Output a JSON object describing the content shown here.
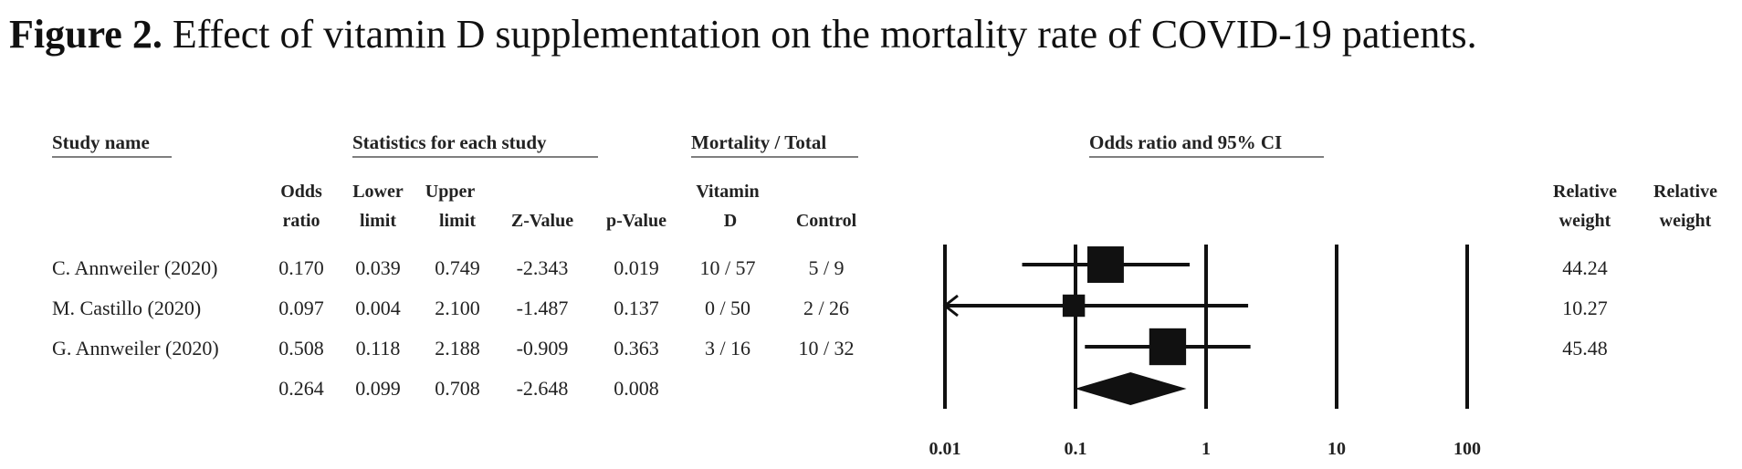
{
  "caption": {
    "label": "Figure 2.",
    "text": " Effect of vitamin D supplementation on the mortality rate of COVID-19 patients."
  },
  "table": {
    "group_headers": {
      "study": "Study name",
      "stats": "Statistics for each study",
      "mortality": "Mortality / Total",
      "plot": "Odds ratio and 95% CI"
    },
    "columns": {
      "odds_ratio": [
        "Odds",
        "ratio"
      ],
      "lower": [
        "Lower",
        "limit"
      ],
      "upper": [
        "Upper",
        "limit"
      ],
      "z": "Z-Value",
      "p": "p-Value",
      "vitd": [
        "Vitamin",
        "D"
      ],
      "control": "Control",
      "weight1": [
        "Relative",
        "weight"
      ],
      "weight2": [
        "Relative",
        "weight"
      ]
    },
    "rows": [
      {
        "study": "C. Annweiler (2020)",
        "or": "0.170",
        "lower": "0.039",
        "upper": "0.749",
        "z": "-2.343",
        "p": "0.019",
        "vitd": "10 / 57",
        "control": "5 / 9",
        "weight": "44.24"
      },
      {
        "study": "M. Castillo (2020)",
        "or": "0.097",
        "lower": "0.004",
        "upper": "2.100",
        "z": "-1.487",
        "p": "0.137",
        "vitd": "0 / 50",
        "control": "2 / 26",
        "weight": "10.27"
      },
      {
        "study": "G. Annweiler (2020)",
        "or": "0.508",
        "lower": "0.118",
        "upper": "2.188",
        "z": "-0.909",
        "p": "0.363",
        "vitd": "3 / 16",
        "control": "10 / 32",
        "weight": "45.48"
      }
    ],
    "summary": {
      "or": "0.264",
      "lower": "0.099",
      "upper": "0.708",
      "z": "-2.648",
      "p": "0.008"
    }
  },
  "chart_data": {
    "type": "forest",
    "scale": "log",
    "x_ticks": [
      0.01,
      0.1,
      1,
      10,
      100
    ],
    "x_tick_labels": [
      "0.01",
      "0.1",
      "1",
      "10",
      "100"
    ],
    "studies": [
      {
        "name": "C. Annweiler (2020)",
        "or": 0.17,
        "lower": 0.039,
        "upper": 0.749,
        "weight": 44.24
      },
      {
        "name": "M. Castillo (2020)",
        "or": 0.097,
        "lower": 0.004,
        "upper": 2.1,
        "weight": 10.27,
        "lower_truncated": true
      },
      {
        "name": "G. Annweiler (2020)",
        "or": 0.508,
        "lower": 0.118,
        "upper": 2.188,
        "weight": 45.48
      }
    ],
    "summary": {
      "or": 0.264,
      "lower": 0.099,
      "upper": 0.708
    }
  }
}
